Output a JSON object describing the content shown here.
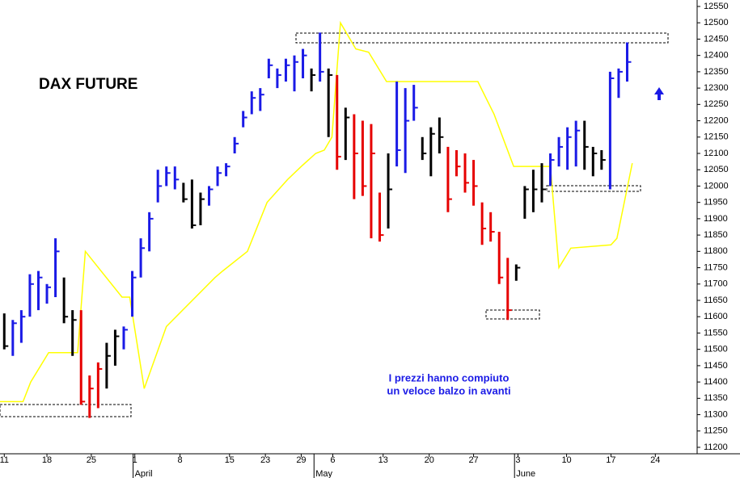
{
  "chart_data": {
    "type": "ohlc",
    "title": "DAX FUTURE",
    "annotation": [
      "I prezzi hanno compiuto",
      "un veloce balzo in avanti"
    ],
    "ylim": [
      11200,
      12550
    ],
    "yticks": [
      11200,
      11250,
      11300,
      11350,
      11400,
      11450,
      11500,
      11550,
      11600,
      11650,
      11700,
      11750,
      11800,
      11850,
      11900,
      11950,
      12000,
      12050,
      12100,
      12150,
      12200,
      12250,
      12300,
      12350,
      12400,
      12450,
      12500,
      12550
    ],
    "xlim": [
      -0.5,
      81.2
    ],
    "xticks": [
      {
        "value": 0,
        "label": "11"
      },
      {
        "value": 5,
        "label": "18"
      },
      {
        "value": 10.2,
        "label": "25"
      },
      {
        "value": 15.3,
        "label": "1"
      },
      {
        "value": 20.6,
        "label": "8"
      },
      {
        "value": 26.4,
        "label": "15"
      },
      {
        "value": 30.6,
        "label": "23"
      },
      {
        "value": 34.8,
        "label": "29"
      },
      {
        "value": 38.5,
        "label": "6"
      },
      {
        "value": 44.4,
        "label": "13"
      },
      {
        "value": 49.8,
        "label": "20"
      },
      {
        "value": 55,
        "label": "27"
      },
      {
        "value": 60.2,
        "label": "3"
      },
      {
        "value": 65.9,
        "label": "10"
      },
      {
        "value": 71.1,
        "label": "17"
      },
      {
        "value": 76.3,
        "label": "24"
      }
    ],
    "month_ticks": [
      {
        "value": 15.1,
        "label": "April"
      },
      {
        "value": 36.3,
        "label": "May"
      },
      {
        "value": 59.8,
        "label": "June"
      }
    ],
    "x": [
      0,
      1,
      2,
      3,
      4,
      5,
      6,
      7,
      8,
      9,
      10,
      11,
      12,
      13,
      14,
      15,
      16,
      17,
      18,
      19,
      20,
      21,
      22,
      23,
      24,
      25,
      26,
      27,
      28,
      29,
      30,
      31,
      32,
      33,
      34,
      35,
      36,
      37,
      38,
      39,
      40,
      41,
      42,
      43,
      44,
      45,
      46,
      47,
      48,
      49,
      50,
      51,
      52,
      53,
      54,
      55,
      56,
      57,
      58,
      59,
      60,
      61,
      62,
      63,
      64,
      65,
      66,
      67,
      68,
      69,
      70,
      71,
      72,
      73
    ],
    "high": [
      11610,
      11590,
      11620,
      11730,
      11740,
      11700,
      11840,
      11720,
      11620,
      11620,
      11420,
      11460,
      11520,
      11560,
      11570,
      11740,
      11840,
      11920,
      12050,
      12060,
      12060,
      12010,
      12020,
      11980,
      12000,
      12060,
      12070,
      12150,
      12230,
      12290,
      12300,
      12390,
      12360,
      12390,
      12400,
      12420,
      12360,
      12470,
      12360,
      12340,
      12240,
      12220,
      12200,
      12190,
      11980,
      12100,
      12320,
      12300,
      12310,
      12150,
      12180,
      12210,
      12120,
      12110,
      12100,
      12080,
      11950,
      11920,
      11860,
      11780,
      11760,
      12000,
      12050,
      12070,
      12100,
      12150,
      12180,
      12200,
      12200,
      12120,
      12110,
      12350,
      12360,
      12440
    ],
    "low": [
      11500,
      11480,
      11520,
      11600,
      11620,
      11640,
      11660,
      11580,
      11480,
      11330,
      11290,
      11320,
      11380,
      11450,
      11500,
      11600,
      11720,
      11800,
      11950,
      12000,
      11990,
      11950,
      11870,
      11880,
      11940,
      12000,
      12030,
      12100,
      12180,
      12220,
      12230,
      12330,
      12300,
      12320,
      12290,
      12330,
      12290,
      12320,
      12150,
      12050,
      12080,
      11960,
      11970,
      11840,
      11830,
      11870,
      12060,
      12040,
      12200,
      12080,
      12030,
      12100,
      11920,
      12030,
      11980,
      11940,
      11820,
      11830,
      11700,
      11590,
      11710,
      11900,
      11920,
      11950,
      12000,
      12060,
      12050,
      12060,
      12050,
      12030,
      12050,
      11990,
      12270,
      12320
    ],
    "close": [
      11510,
      11580,
      11600,
      11700,
      11720,
      11690,
      11800,
      11600,
      11590,
      11340,
      11380,
      11440,
      11480,
      11540,
      11560,
      11720,
      11810,
      11900,
      12000,
      12040,
      12020,
      11960,
      11880,
      11960,
      11990,
      12040,
      12060,
      12130,
      12210,
      12270,
      12280,
      12370,
      12340,
      12370,
      12380,
      12400,
      12340,
      12350,
      12340,
      12090,
      12210,
      12100,
      12000,
      12100,
      11850,
      11990,
      12110,
      12200,
      12240,
      12100,
      12160,
      12150,
      11960,
      12060,
      12010,
      12000,
      11870,
      11860,
      11720,
      11620,
      11750,
      11990,
      11990,
      11990,
      12080,
      12120,
      12150,
      12170,
      12120,
      12100,
      12080,
      12330,
      12350,
      12380
    ],
    "colors": [
      "#000000",
      "#1a1ae6",
      "#1a1ae6",
      "#1a1ae6",
      "#1a1ae6",
      "#1a1ae6",
      "#1a1ae6",
      "#000000",
      "#000000",
      "#e60000",
      "#e60000",
      "#e60000",
      "#000000",
      "#000000",
      "#1a1ae6",
      "#1a1ae6",
      "#1a1ae6",
      "#1a1ae6",
      "#1a1ae6",
      "#1a1ae6",
      "#1a1ae6",
      "#000000",
      "#000000",
      "#000000",
      "#1a1ae6",
      "#1a1ae6",
      "#1a1ae6",
      "#1a1ae6",
      "#1a1ae6",
      "#1a1ae6",
      "#1a1ae6",
      "#1a1ae6",
      "#1a1ae6",
      "#1a1ae6",
      "#1a1ae6",
      "#1a1ae6",
      "#000000",
      "#1a1ae6",
      "#000000",
      "#e60000",
      "#000000",
      "#e60000",
      "#e60000",
      "#e60000",
      "#e60000",
      "#000000",
      "#1a1ae6",
      "#1a1ae6",
      "#1a1ae6",
      "#000000",
      "#000000",
      "#000000",
      "#e60000",
      "#e60000",
      "#e60000",
      "#e60000",
      "#e60000",
      "#e60000",
      "#e60000",
      "#e60000",
      "#000000",
      "#000000",
      "#000000",
      "#000000",
      "#1a1ae6",
      "#1a1ae6",
      "#1a1ae6",
      "#1a1ae6",
      "#000000",
      "#000000",
      "#000000",
      "#1a1ae6",
      "#1a1ae6",
      "#1a1ae6"
    ],
    "line": {
      "color": "#ffff00",
      "x": [
        -0.5,
        2.2,
        3.1,
        5.2,
        7.6,
        8.6,
        9.5,
        13.8,
        14.7,
        16.4,
        19,
        24.7,
        25.6,
        28.5,
        30.8,
        33.2,
        34.8,
        36.5,
        37.5,
        38.4,
        39.4,
        41.2,
        42.7,
        44.8,
        55.5,
        57.4,
        59.7,
        64,
        65,
        66.4,
        71.1,
        71.8,
        73.6
      ],
      "values": [
        11340,
        11340,
        11400,
        11490,
        11490,
        11490,
        11800,
        11660,
        11660,
        11380,
        11570,
        11720,
        11740,
        11800,
        11950,
        12020,
        12060,
        12100,
        12110,
        12150,
        12500,
        12420,
        12410,
        12320,
        12320,
        12220,
        12060,
        12060,
        11750,
        11810,
        11820,
        11840,
        12070
      ]
    }
  }
}
